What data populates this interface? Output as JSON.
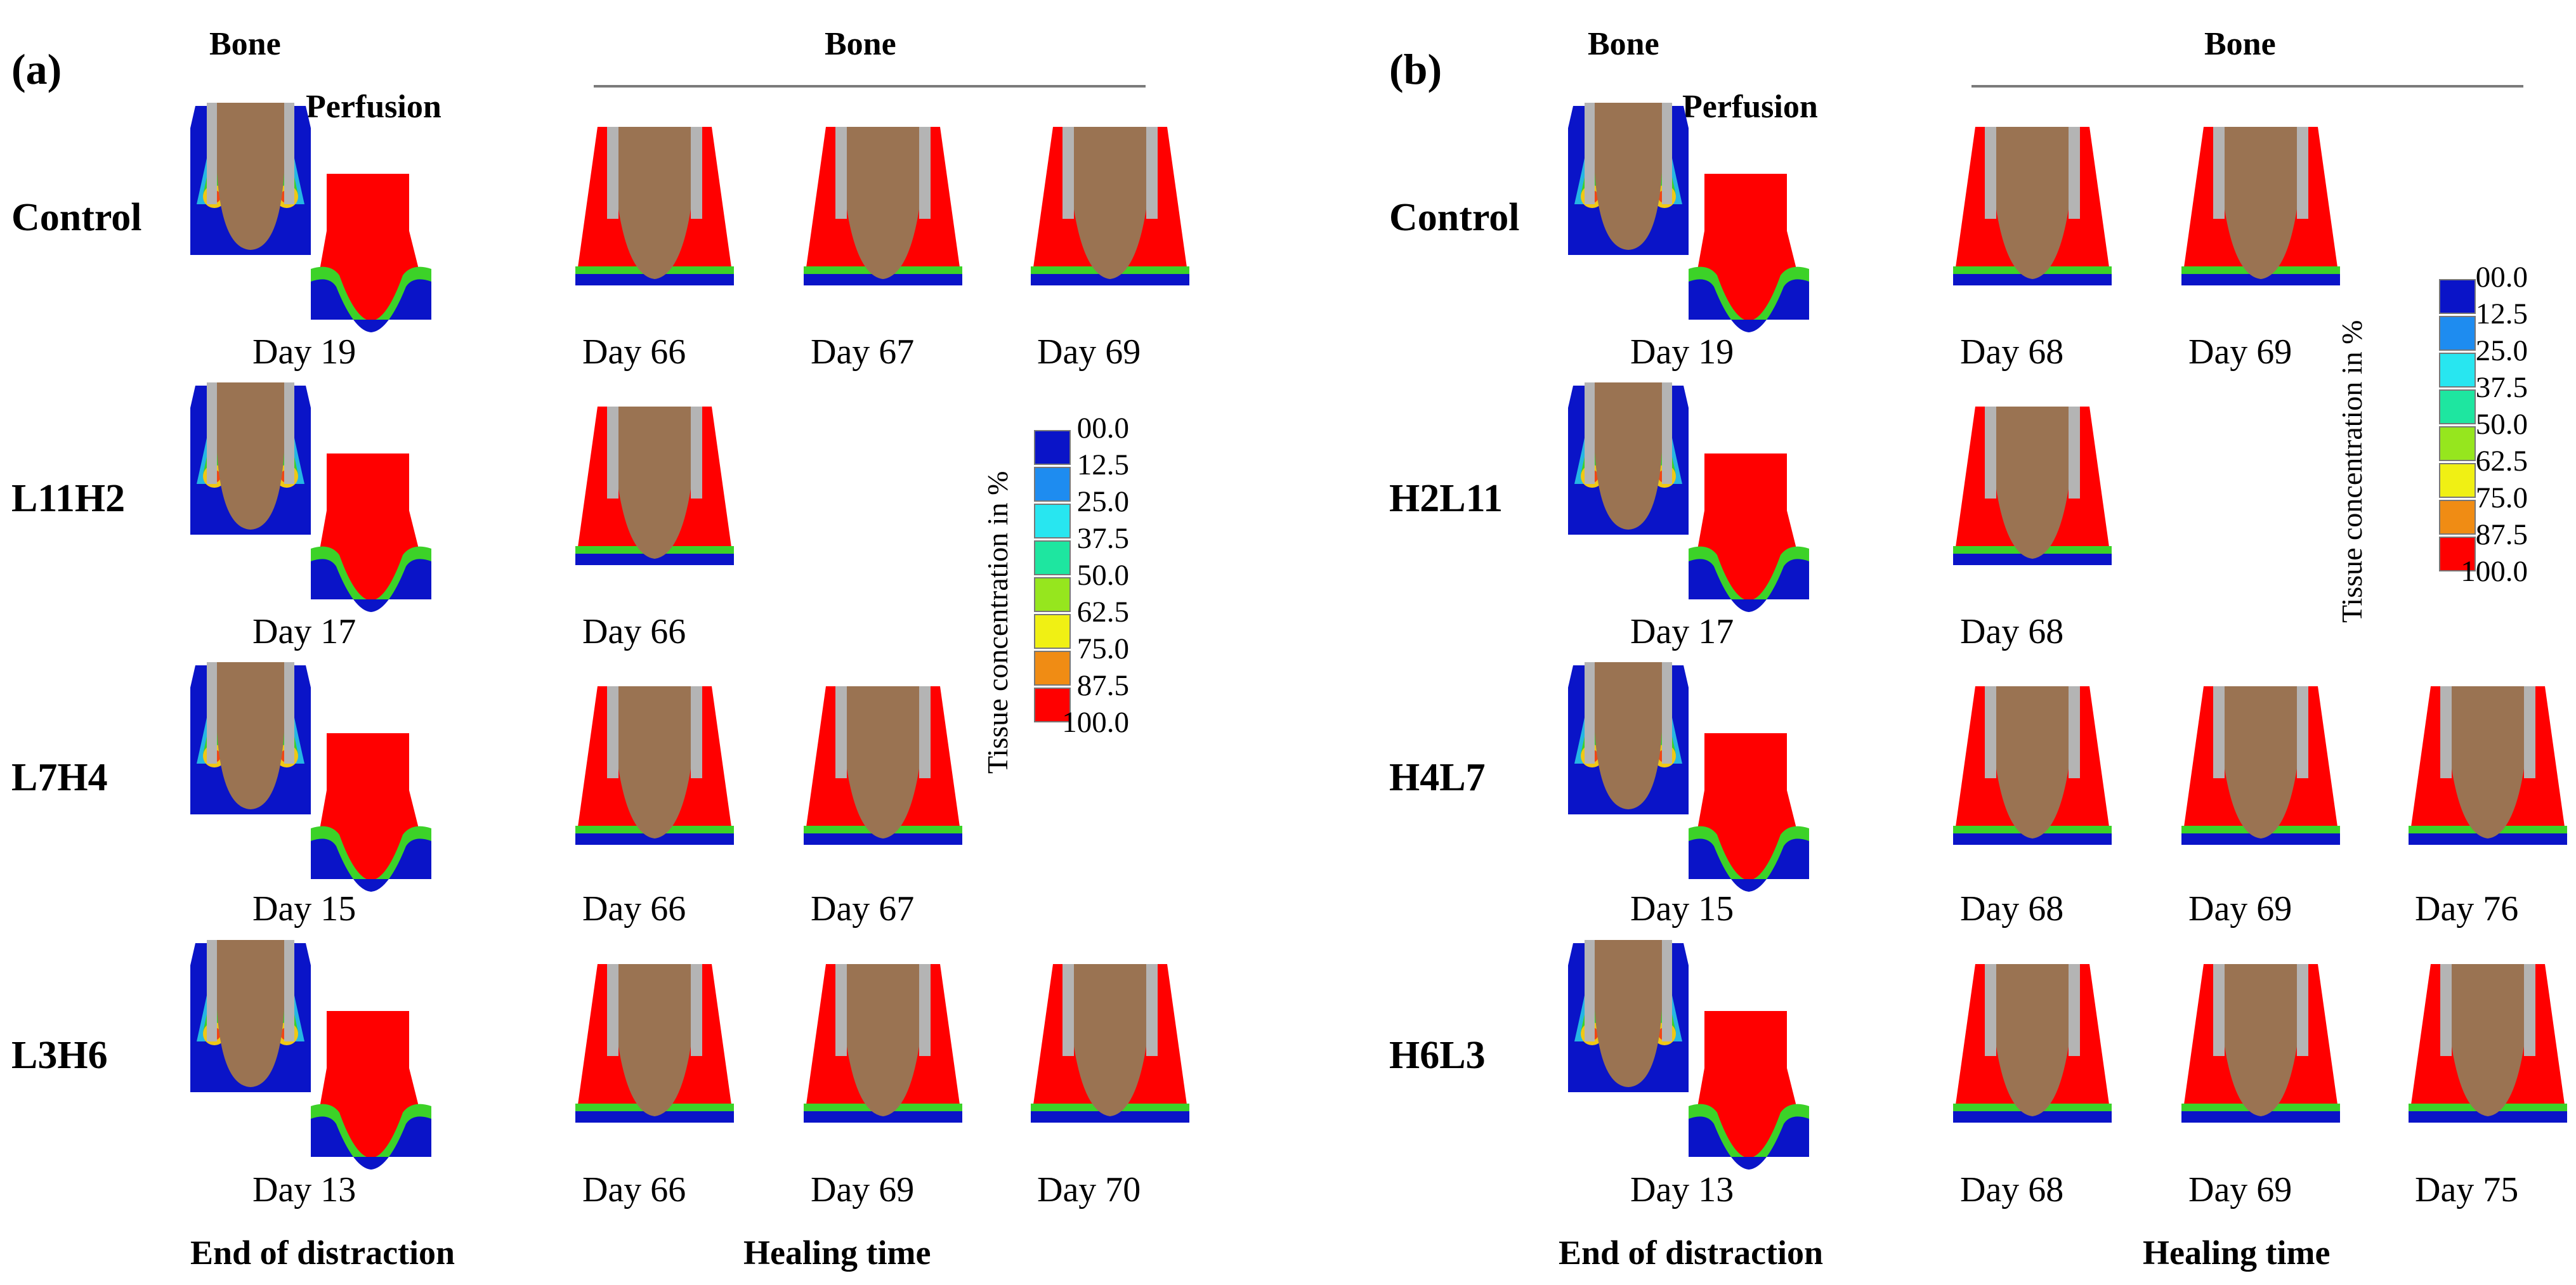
{
  "panels": [
    {
      "label": "(a)",
      "header_bone_left": "Bone",
      "header_perfusion": "Perfusion",
      "header_bone_right": "Bone",
      "rows": [
        {
          "label": "Control",
          "distraction_day": "Day 19",
          "healing_days": [
            "Day 66",
            "Day 67",
            "Day 69"
          ]
        },
        {
          "label": "L11H2",
          "distraction_day": "Day 17",
          "healing_days": [
            "Day 66"
          ]
        },
        {
          "label": "L7H4",
          "distraction_day": "Day 15",
          "healing_days": [
            "Day 66",
            "Day 67"
          ]
        },
        {
          "label": "L3H6",
          "distraction_day": "Day 13",
          "healing_days": [
            "Day 66",
            "Day 69",
            "Day 70"
          ]
        }
      ],
      "footer_left": "End of distraction",
      "footer_right": "Healing time"
    },
    {
      "label": "(b)",
      "header_bone_left": "Bone",
      "header_perfusion": "Perfusion",
      "header_bone_right": "Bone",
      "rows": [
        {
          "label": "Control",
          "distraction_day": "Day 19",
          "healing_days": [
            "Day 68",
            "Day 69"
          ]
        },
        {
          "label": "H2L11",
          "distraction_day": "Day 17",
          "healing_days": [
            "Day 68"
          ]
        },
        {
          "label": "H4L7",
          "distraction_day": "Day 15",
          "healing_days": [
            "Day 68",
            "Day 69",
            "Day 76"
          ]
        },
        {
          "label": "H6L3",
          "distraction_day": "Day 13",
          "healing_days": [
            "Day 68",
            "Day 69",
            "Day 75"
          ]
        }
      ],
      "footer_left": "End of distraction",
      "footer_right": "Healing time"
    }
  ],
  "legend": {
    "title": "Tissue concentration in %",
    "levels": [
      "00.0",
      "12.5",
      "25.0",
      "37.5",
      "50.0",
      "62.5",
      "75.0",
      "87.5",
      "100.0"
    ],
    "colors": [
      "#0a14c8",
      "#1e8cf0",
      "#28e6f0",
      "#1ee6a0",
      "#96e61e",
      "#f0f014",
      "#f08c14",
      "#ff0000"
    ]
  },
  "colors": {
    "bone": "#9a7352",
    "implant": "#b4b4b4",
    "tissue_red": "#ff0000",
    "tissue_blue": "#0a14c8",
    "tissue_green": "#3cd228"
  }
}
